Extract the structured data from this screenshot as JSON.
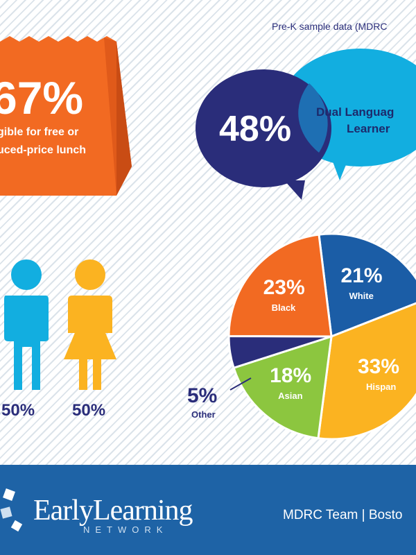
{
  "subtitle": "Pre-K sample data (MDRC",
  "lunch": {
    "percent": "67%",
    "line1": "gible for free or",
    "line2": "uced-price lunch"
  },
  "language": {
    "percent": "48%",
    "label_line1": "Dual Languag",
    "label_line2": "Learner"
  },
  "gender": {
    "male_percent": "50%",
    "female_percent": "50%"
  },
  "colors": {
    "navy": "#2a2d7a",
    "sky": "#12aee0",
    "orange": "#f26a22",
    "gold": "#fbb321",
    "green": "#8cc63f",
    "blue": "#1b5da6"
  },
  "chart_data": {
    "type": "pie",
    "slices": [
      {
        "label": "White",
        "value": 21,
        "display": "21%",
        "color": "#1b5da6"
      },
      {
        "label": "Hispan",
        "value": 33,
        "display": "33%",
        "color": "#fbb321"
      },
      {
        "label": "Asian",
        "value": 18,
        "display": "18%",
        "color": "#8cc63f"
      },
      {
        "label": "Other",
        "value": 5,
        "display": "5%",
        "color": "#2a2d7a"
      },
      {
        "label": "Black",
        "value": 23,
        "display": "23%",
        "color": "#f26a22"
      }
    ]
  },
  "footer": {
    "logo_main": "EarlyLearning",
    "logo_sub": "NETWORK",
    "text": "MDRC Team | Bosto"
  }
}
